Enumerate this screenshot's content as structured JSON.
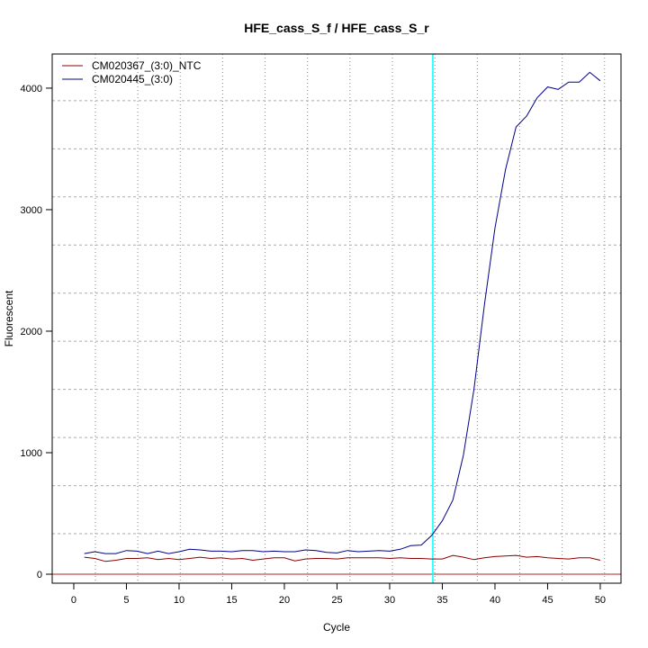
{
  "chart_data": {
    "type": "line",
    "title": "HFE_cass_S_f / HFE_cass_S_r",
    "xlabel": "Cycle",
    "ylabel": "Fluorescent",
    "xlim": [
      -2.05,
      51.97
    ],
    "ylim": [
      -74,
      4281
    ],
    "xticks": [
      0,
      5,
      10,
      15,
      20,
      25,
      30,
      35,
      40,
      45,
      50
    ],
    "yticks": [
      0,
      1000,
      2000,
      3000,
      4000
    ],
    "grid": true,
    "legend_position": "top-left",
    "threshold_cycle": 34.1,
    "threshold_color": "#00ffff",
    "baseline_value": 0,
    "baseline_color": "#b22222",
    "x": [
      1,
      2,
      3,
      4,
      5,
      6,
      7,
      8,
      9,
      10,
      11,
      12,
      13,
      14,
      15,
      16,
      17,
      18,
      19,
      20,
      21,
      22,
      23,
      24,
      25,
      26,
      27,
      28,
      29,
      30,
      31,
      32,
      33,
      34,
      35,
      36,
      37,
      38,
      39,
      40,
      41,
      42,
      43,
      44,
      45,
      46,
      47,
      48,
      49,
      50
    ],
    "series": [
      {
        "name": "CM020367_(3:0)_NTC",
        "color": "#8b0000",
        "values": [
          140,
          130,
          105,
          115,
          130,
          130,
          135,
          120,
          130,
          120,
          130,
          140,
          130,
          135,
          125,
          130,
          115,
          125,
          135,
          135,
          110,
          125,
          130,
          130,
          125,
          135,
          135,
          135,
          135,
          130,
          135,
          130,
          130,
          125,
          125,
          155,
          140,
          120,
          135,
          145,
          150,
          155,
          140,
          145,
          135,
          130,
          125,
          135,
          135,
          115
        ]
      },
      {
        "name": "CM020445_(3:0)",
        "color": "#00008b",
        "values": [
          170,
          185,
          170,
          170,
          195,
          190,
          170,
          190,
          170,
          185,
          205,
          200,
          190,
          190,
          185,
          195,
          195,
          185,
          190,
          185,
          185,
          200,
          195,
          180,
          175,
          195,
          185,
          190,
          195,
          190,
          205,
          235,
          240,
          320,
          440,
          610,
          980,
          1520,
          2220,
          2850,
          3330,
          3680,
          3770,
          3920,
          4010,
          3990,
          4050,
          4050,
          4130,
          4060
        ]
      }
    ]
  }
}
